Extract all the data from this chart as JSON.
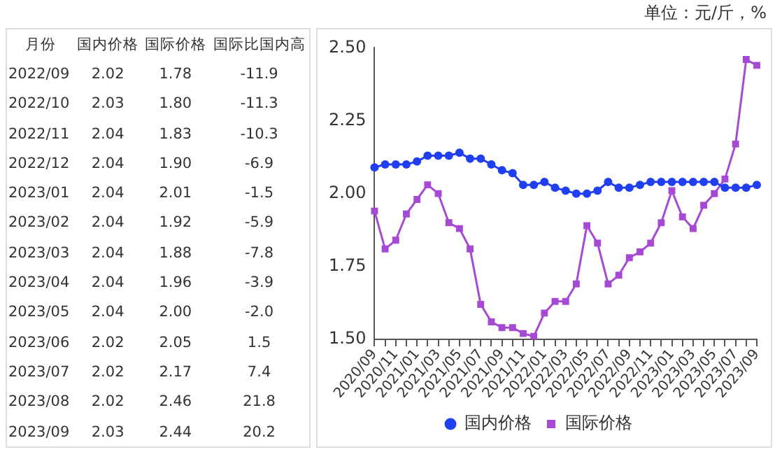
{
  "chart_data": [
    {
      "type": "other",
      "xlabel": "月份",
      "categories": [
        "2022/09",
        "2022/10",
        "2022/11",
        "2022/12",
        "2023/01",
        "2023/02",
        "2023/03",
        "2023/04",
        "2023/05",
        "2023/06",
        "2023/07",
        "2023/08",
        "2023/09"
      ],
      "series": [
        {
          "name": "国内价格",
          "values": [
            2.02,
            2.03,
            2.04,
            2.04,
            2.04,
            2.04,
            2.04,
            2.04,
            2.04,
            2.02,
            2.02,
            2.02,
            2.03
          ],
          "value_labels": [
            "2.02",
            "2.03",
            "2.04",
            "2.04",
            "2.04",
            "2.04",
            "2.04",
            "2.04",
            "2.04",
            "2.02",
            "2.02",
            "2.02",
            "2.03"
          ]
        },
        {
          "name": "国际价格",
          "values": [
            1.78,
            1.8,
            1.83,
            1.9,
            2.01,
            1.92,
            1.88,
            1.96,
            2.0,
            2.05,
            2.17,
            2.46,
            2.44
          ],
          "value_labels": [
            "1.78",
            "1.80",
            "1.83",
            "1.90",
            "2.01",
            "1.92",
            "1.88",
            "1.96",
            "2.00",
            "2.05",
            "2.17",
            "2.46",
            "2.44"
          ]
        },
        {
          "name": "国际比国内高",
          "values": [
            -11.9,
            -11.3,
            -10.3,
            -6.9,
            -1.5,
            -5.9,
            -7.8,
            -3.9,
            -2.0,
            1.5,
            7.4,
            21.8,
            20.2
          ],
          "value_labels": [
            "-11.9",
            "-11.3",
            "-10.3",
            "-6.9",
            "-1.5",
            "-5.9",
            "-7.8",
            "-3.9",
            "-2.0",
            "1.5",
            "7.4",
            "21.8",
            "20.2"
          ]
        }
      ]
    },
    {
      "type": "line",
      "annotations": [
        "单位：元/斤，%"
      ],
      "categories": [
        "2020/09",
        null,
        "2020/11",
        null,
        "2021/01",
        null,
        "2021/03",
        null,
        "2021/05",
        null,
        "2021/07",
        null,
        "2021/09",
        null,
        "2021/11",
        null,
        "2022/01",
        null,
        "2022/03",
        null,
        "2022/05",
        null,
        "2022/07",
        null,
        "2022/09",
        null,
        "2022/11",
        null,
        "2023/01",
        null,
        "2023/03",
        null,
        "2023/05",
        null,
        "2023/07",
        null,
        "2023/09"
      ],
      "series": [
        {
          "name": "国内价格",
          "color": "#1f3ff0",
          "marker": "circle",
          "values": [
            2.09,
            2.1,
            2.1,
            2.1,
            2.11,
            2.13,
            2.13,
            2.13,
            2.14,
            2.12,
            2.12,
            2.1,
            2.08,
            2.07,
            2.03,
            2.03,
            2.04,
            2.02,
            2.01,
            2.0,
            2.0,
            2.01,
            2.04,
            2.02,
            2.02,
            2.03,
            2.04,
            2.04,
            2.04,
            2.04,
            2.04,
            2.04,
            2.04,
            2.02,
            2.02,
            2.02,
            2.03
          ]
        },
        {
          "name": "国际价格",
          "color": "#a64ad6",
          "marker": "square",
          "values": [
            1.94,
            1.81,
            1.84,
            1.93,
            1.98,
            2.03,
            2.0,
            1.9,
            1.88,
            1.81,
            1.62,
            1.56,
            1.54,
            1.54,
            1.52,
            1.51,
            1.59,
            1.63,
            1.63,
            1.69,
            1.89,
            1.83,
            1.69,
            1.72,
            1.78,
            1.8,
            1.83,
            1.9,
            2.01,
            1.92,
            1.88,
            1.96,
            2.0,
            2.05,
            2.17,
            2.46,
            2.44
          ]
        }
      ],
      "ylim": [
        1.5,
        2.5
      ],
      "yticks": [
        {
          "value": 1.5,
          "label": "1.50"
        },
        {
          "value": 1.75,
          "label": "1.75"
        },
        {
          "value": 2,
          "label": "2.00"
        },
        {
          "value": 2.25,
          "label": "2.25"
        },
        {
          "value": 2.5,
          "label": "2.50"
        }
      ],
      "grid": false,
      "legend": "bottom"
    }
  ]
}
